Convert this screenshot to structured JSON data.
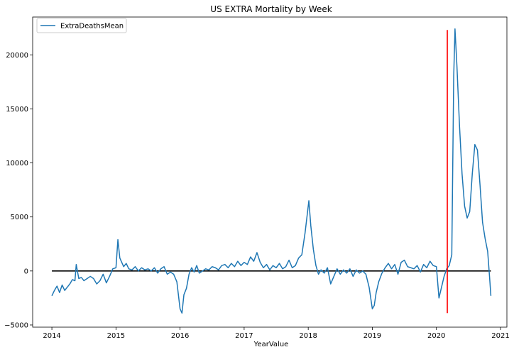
{
  "chart_data": {
    "type": "line",
    "title": "US EXTRA Mortality by Week",
    "xlabel": "YearValue",
    "ylabel": "",
    "xlim": [
      2013.7,
      2021.1
    ],
    "ylim": [
      -5200,
      23500
    ],
    "x_ticks": [
      2014,
      2015,
      2016,
      2017,
      2018,
      2019,
      2020,
      2021
    ],
    "y_ticks": [
      -5000,
      0,
      5000,
      10000,
      15000,
      20000
    ],
    "legend": {
      "placement": "top-left",
      "entries": [
        {
          "label": "ExtraDeathsMean",
          "color": "#1f77b4"
        }
      ]
    },
    "series": [
      {
        "name": "ExtraDeathsMean",
        "color": "#1f77b4",
        "points": [
          [
            2014.0,
            -2300
          ],
          [
            2014.04,
            -1800
          ],
          [
            2014.08,
            -1400
          ],
          [
            2014.12,
            -2000
          ],
          [
            2014.16,
            -1300
          ],
          [
            2014.2,
            -1800
          ],
          [
            2014.24,
            -1500
          ],
          [
            2014.28,
            -1200
          ],
          [
            2014.32,
            -800
          ],
          [
            2014.36,
            -900
          ],
          [
            2014.38,
            600
          ],
          [
            2014.42,
            -700
          ],
          [
            2014.46,
            -600
          ],
          [
            2014.5,
            -900
          ],
          [
            2014.55,
            -700
          ],
          [
            2014.6,
            -500
          ],
          [
            2014.65,
            -700
          ],
          [
            2014.7,
            -1200
          ],
          [
            2014.75,
            -900
          ],
          [
            2014.8,
            -300
          ],
          [
            2014.85,
            -1100
          ],
          [
            2014.9,
            -500
          ],
          [
            2014.95,
            200
          ],
          [
            2015.0,
            300
          ],
          [
            2015.03,
            2900
          ],
          [
            2015.06,
            1200
          ],
          [
            2015.09,
            800
          ],
          [
            2015.12,
            400
          ],
          [
            2015.16,
            700
          ],
          [
            2015.2,
            200
          ],
          [
            2015.25,
            100
          ],
          [
            2015.3,
            400
          ],
          [
            2015.35,
            0
          ],
          [
            2015.4,
            300
          ],
          [
            2015.45,
            100
          ],
          [
            2015.5,
            200
          ],
          [
            2015.55,
            0
          ],
          [
            2015.6,
            300
          ],
          [
            2015.65,
            -200
          ],
          [
            2015.7,
            200
          ],
          [
            2015.75,
            400
          ],
          [
            2015.8,
            -300
          ],
          [
            2015.85,
            -100
          ],
          [
            2015.9,
            -300
          ],
          [
            2015.95,
            -1000
          ],
          [
            2016.0,
            -3500
          ],
          [
            2016.03,
            -3900
          ],
          [
            2016.06,
            -2200
          ],
          [
            2016.1,
            -1600
          ],
          [
            2016.14,
            -300
          ],
          [
            2016.18,
            300
          ],
          [
            2016.22,
            -100
          ],
          [
            2016.26,
            500
          ],
          [
            2016.3,
            -200
          ],
          [
            2016.35,
            0
          ],
          [
            2016.4,
            200
          ],
          [
            2016.45,
            100
          ],
          [
            2016.5,
            400
          ],
          [
            2016.55,
            300
          ],
          [
            2016.6,
            100
          ],
          [
            2016.65,
            500
          ],
          [
            2016.7,
            600
          ],
          [
            2016.75,
            300
          ],
          [
            2016.8,
            700
          ],
          [
            2016.85,
            400
          ],
          [
            2016.9,
            900
          ],
          [
            2016.95,
            500
          ],
          [
            2017.0,
            800
          ],
          [
            2017.05,
            600
          ],
          [
            2017.1,
            1300
          ],
          [
            2017.15,
            900
          ],
          [
            2017.2,
            1700
          ],
          [
            2017.25,
            800
          ],
          [
            2017.3,
            300
          ],
          [
            2017.35,
            600
          ],
          [
            2017.4,
            100
          ],
          [
            2017.45,
            500
          ],
          [
            2017.5,
            300
          ],
          [
            2017.55,
            700
          ],
          [
            2017.6,
            200
          ],
          [
            2017.65,
            400
          ],
          [
            2017.7,
            1000
          ],
          [
            2017.75,
            300
          ],
          [
            2017.8,
            500
          ],
          [
            2017.85,
            1200
          ],
          [
            2017.9,
            1500
          ],
          [
            2017.95,
            3500
          ],
          [
            2018.01,
            6500
          ],
          [
            2018.04,
            4200
          ],
          [
            2018.08,
            2000
          ],
          [
            2018.12,
            500
          ],
          [
            2018.16,
            -300
          ],
          [
            2018.2,
            100
          ],
          [
            2018.25,
            -200
          ],
          [
            2018.3,
            300
          ],
          [
            2018.35,
            -1200
          ],
          [
            2018.4,
            -500
          ],
          [
            2018.45,
            200
          ],
          [
            2018.5,
            -300
          ],
          [
            2018.55,
            100
          ],
          [
            2018.6,
            -200
          ],
          [
            2018.65,
            200
          ],
          [
            2018.7,
            -500
          ],
          [
            2018.75,
            100
          ],
          [
            2018.8,
            -200
          ],
          [
            2018.85,
            0
          ],
          [
            2018.9,
            -300
          ],
          [
            2018.95,
            -1500
          ],
          [
            2019.0,
            -3500
          ],
          [
            2019.03,
            -3200
          ],
          [
            2019.06,
            -2000
          ],
          [
            2019.1,
            -1000
          ],
          [
            2019.15,
            -200
          ],
          [
            2019.2,
            300
          ],
          [
            2019.25,
            700
          ],
          [
            2019.3,
            200
          ],
          [
            2019.35,
            600
          ],
          [
            2019.4,
            -300
          ],
          [
            2019.45,
            800
          ],
          [
            2019.5,
            1000
          ],
          [
            2019.55,
            400
          ],
          [
            2019.6,
            300
          ],
          [
            2019.65,
            200
          ],
          [
            2019.7,
            500
          ],
          [
            2019.75,
            -100
          ],
          [
            2019.8,
            600
          ],
          [
            2019.85,
            300
          ],
          [
            2019.9,
            900
          ],
          [
            2019.95,
            500
          ],
          [
            2020.0,
            400
          ],
          [
            2020.04,
            -2500
          ],
          [
            2020.08,
            -1500
          ],
          [
            2020.12,
            -500
          ],
          [
            2020.16,
            200
          ],
          [
            2020.2,
            500
          ],
          [
            2020.24,
            1500
          ],
          [
            2020.27,
            18000
          ],
          [
            2020.29,
            22400
          ],
          [
            2020.32,
            19000
          ],
          [
            2020.36,
            13500
          ],
          [
            2020.4,
            9000
          ],
          [
            2020.44,
            6000
          ],
          [
            2020.48,
            4900
          ],
          [
            2020.52,
            5500
          ],
          [
            2020.56,
            9000
          ],
          [
            2020.6,
            11700
          ],
          [
            2020.64,
            11200
          ],
          [
            2020.68,
            8000
          ],
          [
            2020.72,
            4500
          ],
          [
            2020.76,
            3000
          ],
          [
            2020.8,
            1800
          ],
          [
            2020.83,
            -600
          ],
          [
            2020.85,
            -2300
          ]
        ]
      },
      {
        "name": "",
        "color": "#000000",
        "points": [
          [
            2014.0,
            0
          ],
          [
            2020.85,
            0
          ]
        ]
      },
      {
        "name": "",
        "color": "#ff0000",
        "points": [
          [
            2020.17,
            -3900
          ],
          [
            2020.17,
            22300
          ]
        ]
      }
    ]
  }
}
